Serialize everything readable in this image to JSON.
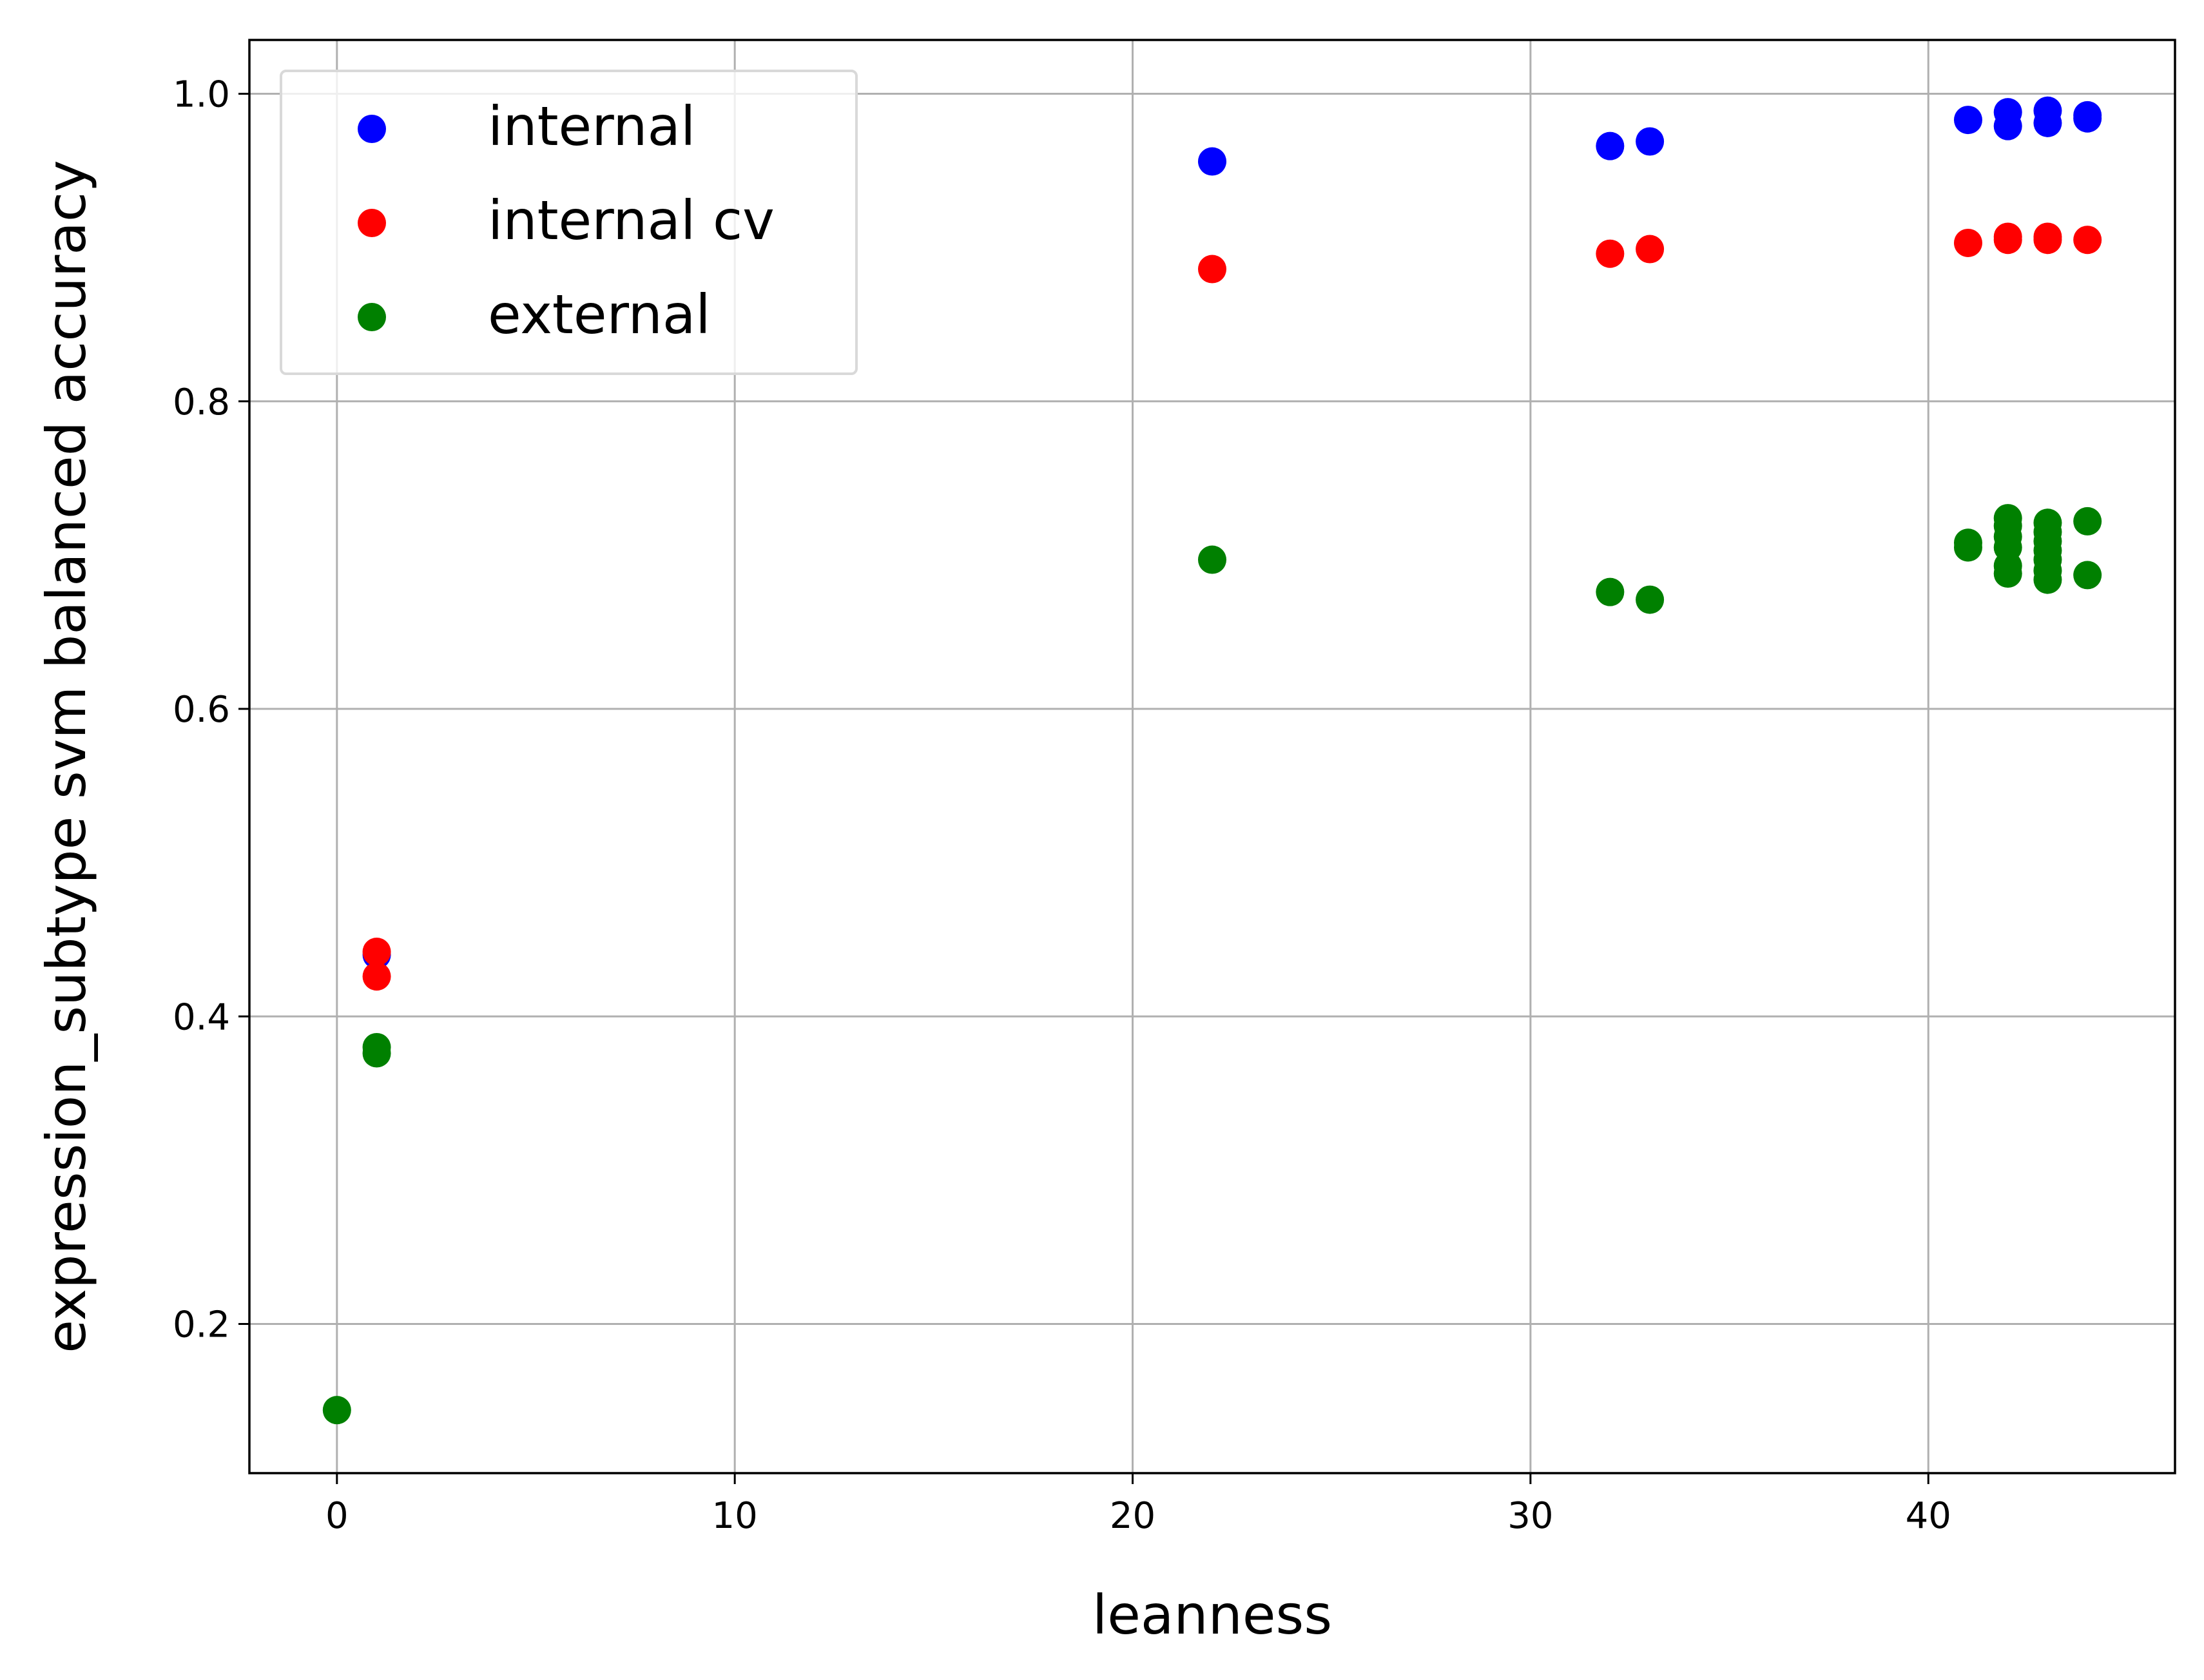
{
  "chart_data": {
    "type": "scatter",
    "title": "",
    "xlabel": "leanness",
    "ylabel": "expression_subtype svm balanced accuracy",
    "xlim": [
      -2.2,
      46.2
    ],
    "ylim": [
      0.103,
      1.035
    ],
    "xticks": [
      0,
      10,
      20,
      30,
      40
    ],
    "xtick_labels": [
      "0",
      "10",
      "20",
      "30",
      "40"
    ],
    "yticks": [
      0.2,
      0.4,
      0.6,
      0.8,
      1.0
    ],
    "ytick_labels": [
      "0.2",
      "0.4",
      "0.6",
      "0.8",
      "1.0"
    ],
    "grid": true,
    "legend_position": "upper-left",
    "series": [
      {
        "name": "internal",
        "color": "#0000ff",
        "points": [
          [
            1,
            0.44
          ],
          [
            22,
            0.956
          ],
          [
            32,
            0.966
          ],
          [
            33,
            0.969
          ],
          [
            41,
            0.983
          ],
          [
            42,
            0.979
          ],
          [
            42,
            0.988
          ],
          [
            43,
            0.981
          ],
          [
            43,
            0.989
          ],
          [
            44,
            0.984
          ],
          [
            44,
            0.986
          ]
        ]
      },
      {
        "name": "internal cv",
        "color": "#ff0000",
        "points": [
          [
            1,
            0.442
          ],
          [
            1,
            0.426
          ],
          [
            22,
            0.886
          ],
          [
            32,
            0.896
          ],
          [
            33,
            0.899
          ],
          [
            41,
            0.903
          ],
          [
            42,
            0.905
          ],
          [
            42,
            0.907
          ],
          [
            43,
            0.905
          ],
          [
            43,
            0.907
          ],
          [
            44,
            0.905
          ]
        ]
      },
      {
        "name": "external",
        "color": "#008000",
        "points": [
          [
            0,
            0.144
          ],
          [
            1,
            0.38
          ],
          [
            1,
            0.376
          ],
          [
            22,
            0.697
          ],
          [
            32,
            0.676
          ],
          [
            33,
            0.671
          ],
          [
            41,
            0.705
          ],
          [
            41,
            0.708
          ],
          [
            42,
            0.688
          ],
          [
            42,
            0.693
          ],
          [
            42,
            0.705
          ],
          [
            42,
            0.712
          ],
          [
            42,
            0.719
          ],
          [
            42,
            0.724
          ],
          [
            43,
            0.684
          ],
          [
            43,
            0.69
          ],
          [
            43,
            0.697
          ],
          [
            43,
            0.703
          ],
          [
            43,
            0.709
          ],
          [
            43,
            0.715
          ],
          [
            43,
            0.721
          ],
          [
            44,
            0.687
          ],
          [
            44,
            0.722
          ]
        ]
      }
    ]
  }
}
